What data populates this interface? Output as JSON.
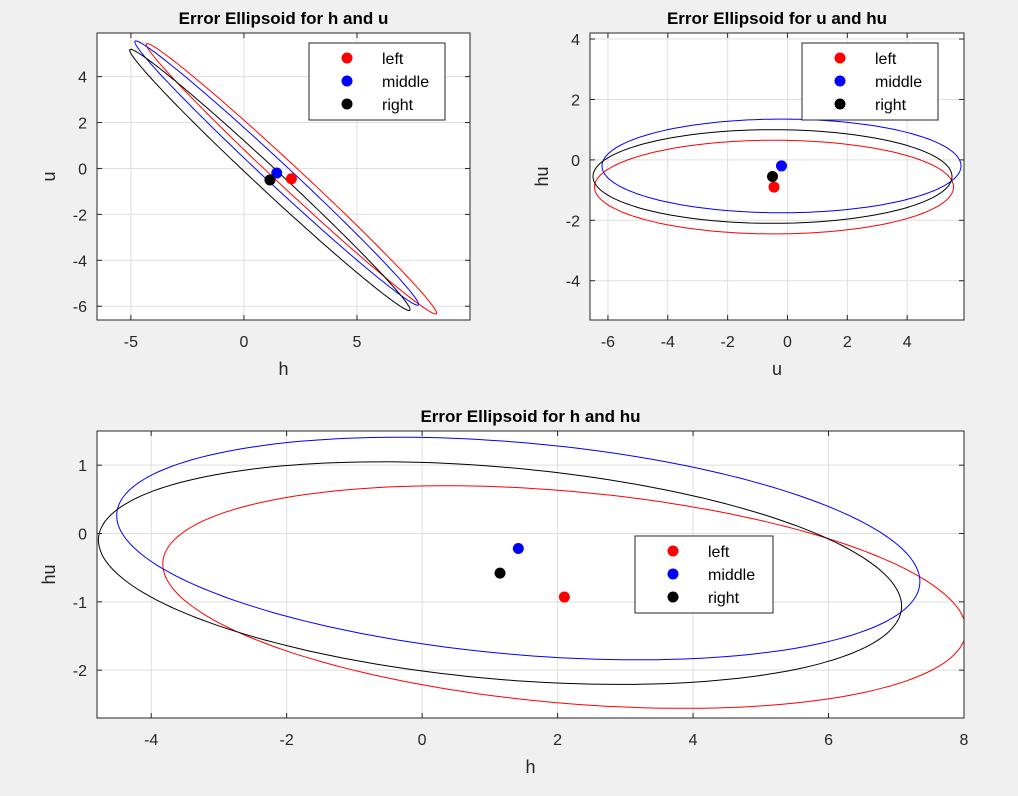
{
  "chart_data": [
    {
      "type": "scatter",
      "title": "Error Ellipsoid for h and u",
      "xlabel": "h",
      "ylabel": "u",
      "xlim": [
        -6.5,
        10
      ],
      "ylim": [
        -6.6,
        5.9
      ],
      "xticks": [
        -5,
        0,
        5
      ],
      "yticks": [
        -6,
        -4,
        -2,
        0,
        2,
        4
      ],
      "xtick_labels": [
        "-5",
        "0",
        "5"
      ],
      "ytick_labels": [
        "-6",
        "-4",
        "-2",
        "0",
        "2",
        "4"
      ],
      "grid": true,
      "legend_position": "top-right",
      "series": [
        {
          "name": "left",
          "color": "#ff0000",
          "point": [
            2.1,
            -0.45
          ],
          "ellipse": {
            "center": [
              2.1,
              -0.45
            ],
            "a": 8.7,
            "b": 0.5,
            "angle_deg": -42.5
          }
        },
        {
          "name": "middle",
          "color": "#0000ff",
          "point": [
            1.45,
            -0.2
          ],
          "ellipse": {
            "center": [
              1.45,
              -0.2
            ],
            "a": 8.5,
            "b": 0.5,
            "angle_deg": -42.5
          }
        },
        {
          "name": "right",
          "color": "#000000",
          "point": [
            1.15,
            -0.5
          ],
          "ellipse": {
            "center": [
              1.15,
              -0.5
            ],
            "a": 8.4,
            "b": 0.5,
            "angle_deg": -42.5
          }
        }
      ]
    },
    {
      "type": "scatter",
      "title": "Error Ellipsoid for u and hu",
      "xlabel": "u",
      "ylabel": "hu",
      "xlim": [
        -6.6,
        5.9
      ],
      "ylim": [
        -5.3,
        4.2
      ],
      "xticks": [
        -6,
        -4,
        -2,
        0,
        2,
        4
      ],
      "yticks": [
        -4,
        -2,
        0,
        2,
        4
      ],
      "xtick_labels": [
        "-6",
        "-4",
        "-2",
        "0",
        "2",
        "4"
      ],
      "ytick_labels": [
        "-4",
        "-2",
        "0",
        "2",
        "4"
      ],
      "grid": true,
      "legend_position": "top-right",
      "series": [
        {
          "name": "left",
          "color": "#ff0000",
          "point": [
            -0.45,
            -0.9
          ],
          "ellipse": {
            "center": [
              -0.45,
              -0.9
            ],
            "a": 6.0,
            "b": 1.55,
            "angle_deg": 0
          }
        },
        {
          "name": "middle",
          "color": "#0000ff",
          "point": [
            -0.2,
            -0.2
          ],
          "ellipse": {
            "center": [
              -0.2,
              -0.2
            ],
            "a": 6.0,
            "b": 1.55,
            "angle_deg": 0
          }
        },
        {
          "name": "right",
          "color": "#000000",
          "point": [
            -0.5,
            -0.55
          ],
          "ellipse": {
            "center": [
              -0.5,
              -0.55
            ],
            "a": 6.0,
            "b": 1.55,
            "angle_deg": 0
          }
        }
      ]
    },
    {
      "type": "scatter",
      "title": "Error Ellipsoid for h and hu",
      "xlabel": "h",
      "ylabel": "hu",
      "xlim": [
        -4.8,
        8.0
      ],
      "ylim": [
        -2.7,
        1.5
      ],
      "xticks": [
        -4,
        -2,
        0,
        2,
        4,
        6,
        8
      ],
      "yticks": [
        -2,
        -1,
        0,
        1
      ],
      "xtick_labels": [
        "-4",
        "-2",
        "0",
        "2",
        "4",
        "6",
        "8"
      ],
      "ytick_labels": [
        "-2",
        "-1",
        "0",
        "1"
      ],
      "grid": true,
      "legend_position": "center-right",
      "series": [
        {
          "name": "left",
          "color": "#ff0000",
          "point": [
            2.1,
            -0.93
          ],
          "ellipse": {
            "center": [
              2.1,
              -0.93
            ],
            "a": 5.95,
            "b": 1.55,
            "angle_deg": -5
          }
        },
        {
          "name": "middle",
          "color": "#0000ff",
          "point": [
            1.42,
            -0.22
          ],
          "ellipse": {
            "center": [
              1.42,
              -0.22
            ],
            "a": 5.95,
            "b": 1.55,
            "angle_deg": -5
          }
        },
        {
          "name": "right",
          "color": "#000000",
          "point": [
            1.15,
            -0.58
          ],
          "ellipse": {
            "center": [
              1.15,
              -0.58
            ],
            "a": 5.95,
            "b": 1.55,
            "angle_deg": -5
          }
        }
      ]
    }
  ]
}
